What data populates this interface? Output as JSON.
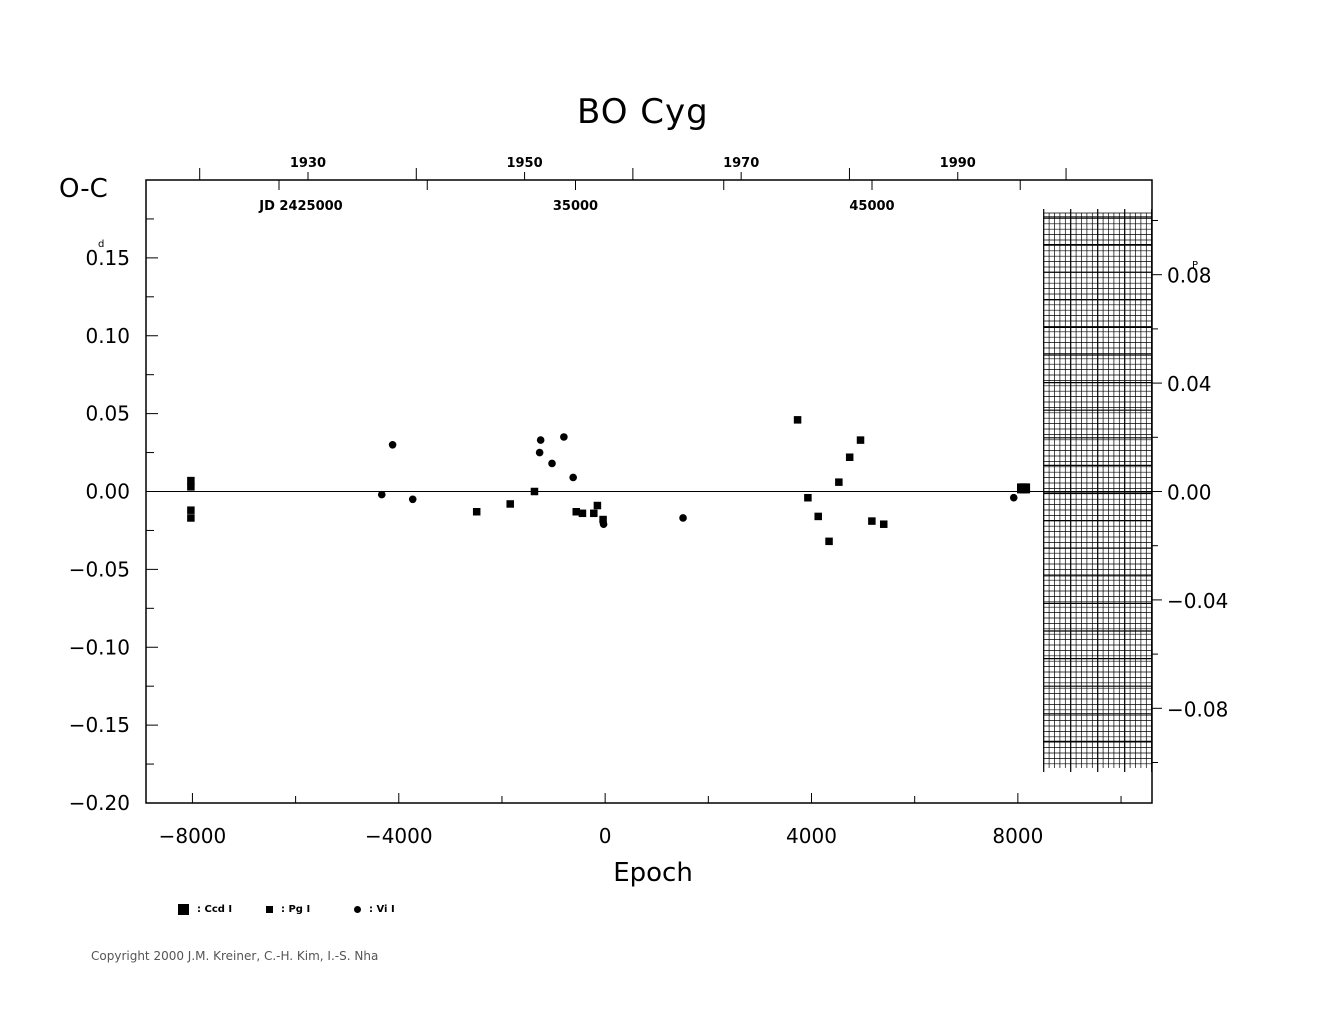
{
  "title": "BO  Cyg",
  "copyright": "Copyright 2000 J.M. Kreiner, C.-H. Kim, I.-S. Nha",
  "chart_data": {
    "type": "scatter",
    "title": "BO  Cyg",
    "xlabel": "Epoch",
    "ylabel": "O-C",
    "y_unit_mark": "d",
    "y2_unit_mark": "P",
    "xlim": [
      -8900,
      10600
    ],
    "ylim": [
      -0.2,
      0.2
    ],
    "x_ticks": [
      -8000,
      -4000,
      0,
      4000,
      8000
    ],
    "x_tick_labels": [
      "−8000",
      "−4000",
      "0",
      "4000",
      "8000"
    ],
    "y_ticks": [
      0.15,
      0.1,
      0.05,
      0.0,
      -0.05,
      -0.1,
      -0.15,
      -0.2
    ],
    "y_tick_labels": [
      "0.15",
      "0.10",
      "0.05",
      "0.00",
      "−0.05",
      "−0.10",
      "−0.15",
      "−0.20"
    ],
    "y2_ticks": [
      0.08,
      0.04,
      0.0,
      -0.04,
      -0.08
    ],
    "y2_tick_labels": [
      "0.08",
      "0.04",
      "0.00",
      "−0.04",
      "−0.08"
    ],
    "period_days": 1.74,
    "top_year_ticks": [
      1930,
      1950,
      1970,
      1990
    ],
    "top_year_labels": [
      "1930",
      "1950",
      "1970",
      "1990"
    ],
    "jd_ticks": [
      25000,
      35000,
      45000
    ],
    "jd_labels": [
      "JD  2425000",
      "35000",
      "45000"
    ],
    "zero_line": true,
    "hatched_region_x": [
      8500,
      10600
    ],
    "series": [
      {
        "name": ": Ccd  I",
        "marker": "square-large",
        "points": [
          [
            8080,
            0.002
          ],
          [
            8140,
            0.002
          ]
        ]
      },
      {
        "name": ": Pg  I",
        "marker": "square",
        "points": [
          [
            -8030,
            0.007
          ],
          [
            -8030,
            0.003
          ],
          [
            -8030,
            -0.012
          ],
          [
            -8030,
            -0.017
          ],
          [
            -2490,
            -0.013
          ],
          [
            -1840,
            -0.008
          ],
          [
            -1370,
            0.0
          ],
          [
            -560,
            -0.013
          ],
          [
            -440,
            -0.014
          ],
          [
            -220,
            -0.014
          ],
          [
            -150,
            -0.009
          ],
          [
            -40,
            -0.018
          ],
          [
            3730,
            0.046
          ],
          [
            3930,
            -0.004
          ],
          [
            4130,
            -0.016
          ],
          [
            4340,
            -0.032
          ],
          [
            4530,
            0.006
          ],
          [
            4740,
            0.022
          ],
          [
            4950,
            0.033
          ],
          [
            5170,
            -0.019
          ],
          [
            5400,
            -0.021
          ]
        ]
      },
      {
        "name": ": Vi  I",
        "marker": "circle",
        "points": [
          [
            -4330,
            -0.002
          ],
          [
            -4120,
            0.03
          ],
          [
            -3730,
            -0.005
          ],
          [
            -1270,
            0.025
          ],
          [
            -1250,
            0.033
          ],
          [
            -1030,
            0.018
          ],
          [
            -800,
            0.035
          ],
          [
            -620,
            0.009
          ],
          [
            -30,
            -0.021
          ],
          [
            1510,
            -0.017
          ],
          [
            7920,
            -0.004
          ]
        ]
      }
    ]
  }
}
